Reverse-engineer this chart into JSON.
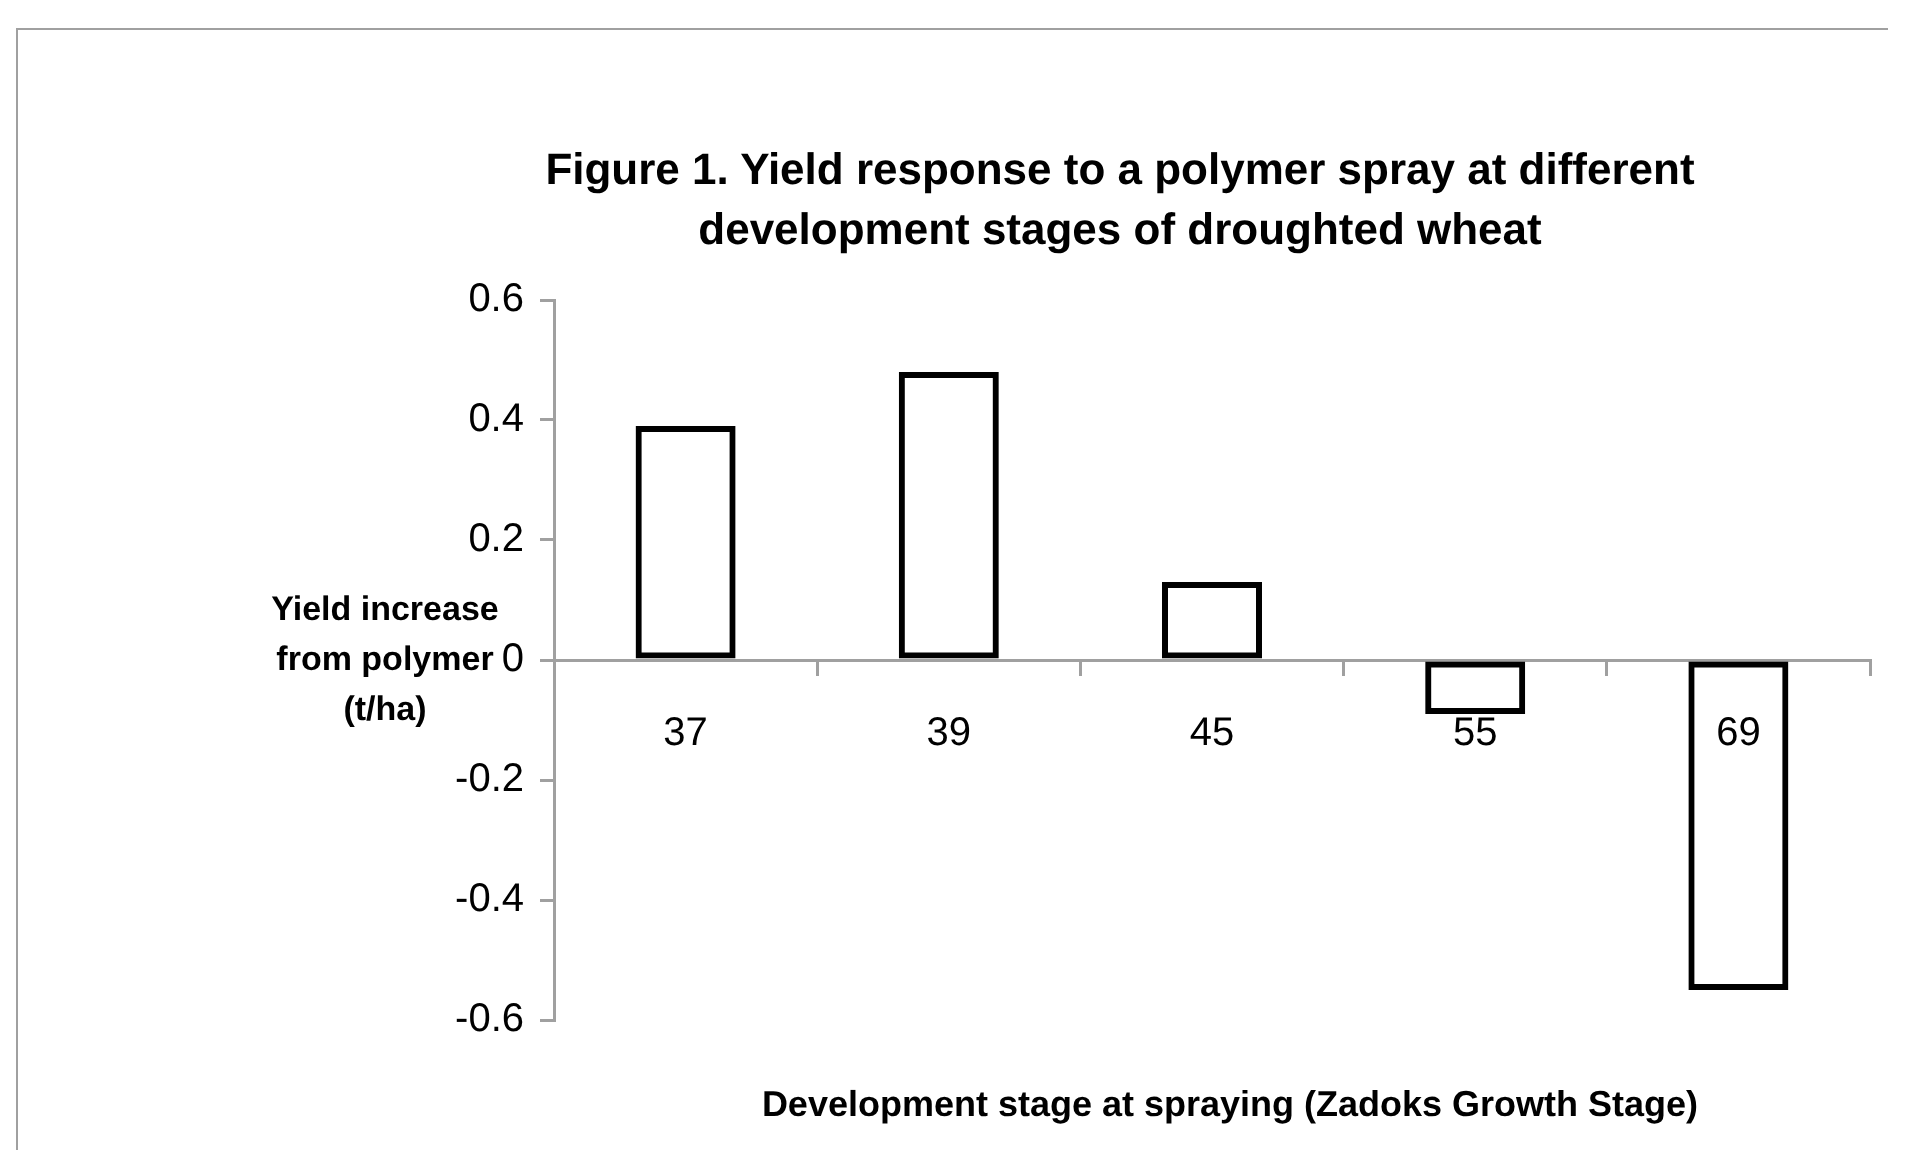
{
  "chart_data": {
    "type": "bar",
    "title": "Figure 1. Yield response to a polymer spray at different development stages of droughted wheat",
    "xlabel": "Development stage at spraying (Zadoks Growth Stage)",
    "ylabel": "Yield increase from polymer (t/ha)",
    "categories": [
      "37",
      "39",
      "45",
      "55",
      "69"
    ],
    "values": [
      0.39,
      0.48,
      0.13,
      -0.09,
      -0.55
    ],
    "color": "#000000",
    "ylim": [
      -0.6,
      0.6
    ],
    "yticks": [
      -0.6,
      -0.4,
      -0.2,
      0,
      0.2,
      0.4,
      0.6
    ],
    "grid": false,
    "legend": false
  }
}
